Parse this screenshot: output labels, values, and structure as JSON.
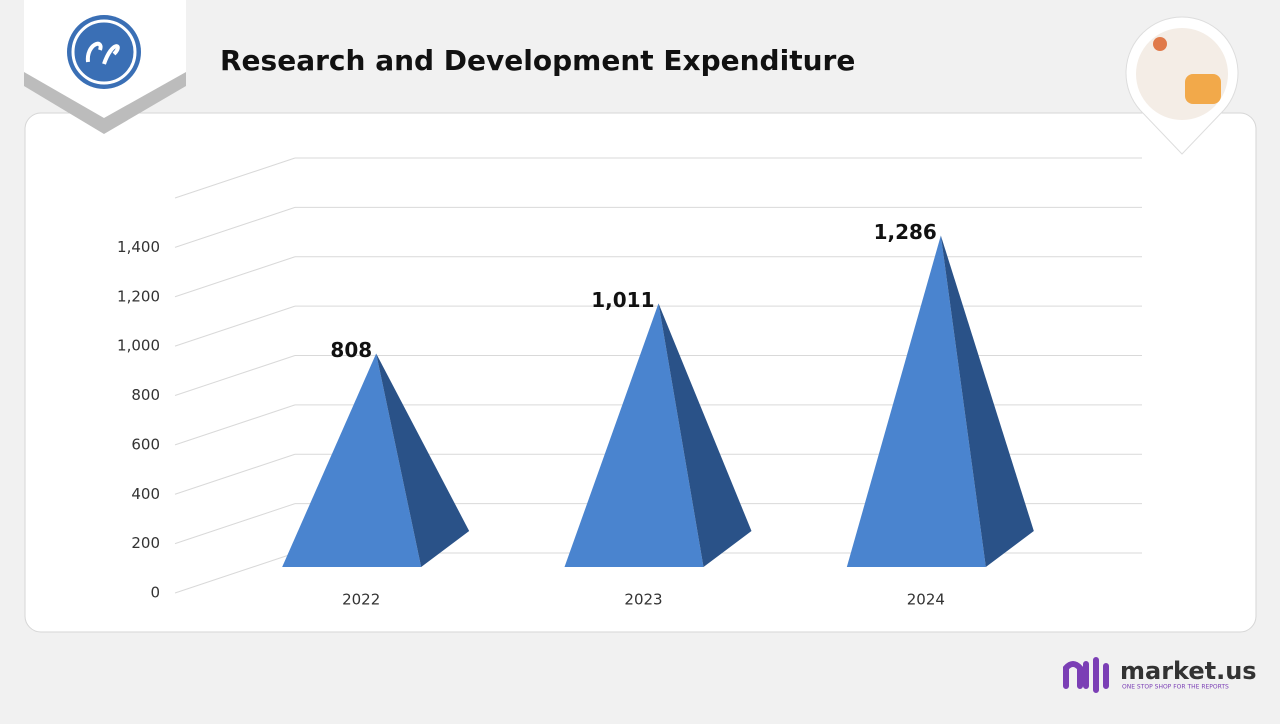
{
  "chart_data": {
    "type": "pyramid",
    "title": "Research and Development Expenditure",
    "categories": [
      "2022",
      "2023",
      "2024"
    ],
    "values": [
      808,
      1011,
      1286
    ],
    "value_labels": [
      "808",
      "1,011",
      "1,286"
    ],
    "color": "#4a84cf",
    "side_color": "#2a5288",
    "ylim": [
      0,
      1600
    ],
    "yticks": [
      0,
      200,
      400,
      600,
      800,
      {
        "value": 1000,
        "label": "1,000"
      },
      {
        "value": 1200,
        "label": "1,200"
      },
      {
        "value": 1400,
        "label": "1,400"
      }
    ],
    "grid": true
  },
  "branding": {
    "name": "market.us",
    "tagline": "ONE STOP SHOP FOR THE REPORTS"
  }
}
